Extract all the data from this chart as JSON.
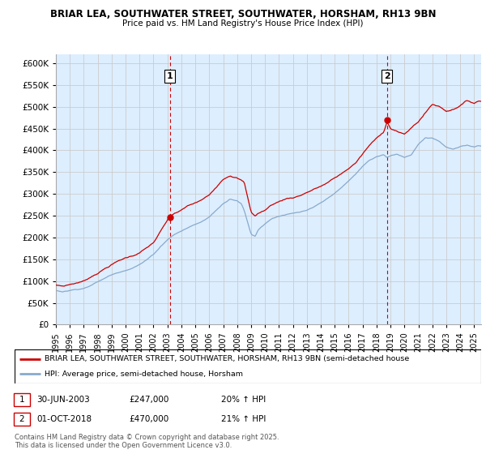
{
  "title_line1": "BRIAR LEA, SOUTHWATER STREET, SOUTHWATER, HORSHAM, RH13 9BN",
  "title_line2": "Price paid vs. HM Land Registry's House Price Index (HPI)",
  "ylim": [
    0,
    620000
  ],
  "yticks": [
    0,
    50000,
    100000,
    150000,
    200000,
    250000,
    300000,
    350000,
    400000,
    450000,
    500000,
    550000,
    600000
  ],
  "ytick_labels": [
    "£0",
    "£50K",
    "£100K",
    "£150K",
    "£200K",
    "£250K",
    "£300K",
    "£350K",
    "£400K",
    "£450K",
    "£500K",
    "£550K",
    "£600K"
  ],
  "xlim_start": 1995.0,
  "xlim_end": 2025.5,
  "xticks": [
    1995,
    1996,
    1997,
    1998,
    1999,
    2000,
    2001,
    2002,
    2003,
    2004,
    2005,
    2006,
    2007,
    2008,
    2009,
    2010,
    2011,
    2012,
    2013,
    2014,
    2015,
    2016,
    2017,
    2018,
    2019,
    2020,
    2021,
    2022,
    2023,
    2024,
    2025
  ],
  "red_color": "#cc0000",
  "blue_color": "#88aacc",
  "vline_color": "#cc0000",
  "grid_color": "#cccccc",
  "chart_bg_color": "#ddeeff",
  "background_color": "#ffffff",
  "marker1_x": 2003.17,
  "marker1_y": 247000,
  "marker2_x": 2018.75,
  "marker2_y": 470000,
  "legend_red_text": "BRIAR LEA, SOUTHWATER STREET, SOUTHWATER, HORSHAM, RH13 9BN (semi-detached house",
  "legend_blue_text": "HPI: Average price, semi-detached house, Horsham",
  "copyright_text": "Contains HM Land Registry data © Crown copyright and database right 2025.\nThis data is licensed under the Open Government Licence v3.0."
}
